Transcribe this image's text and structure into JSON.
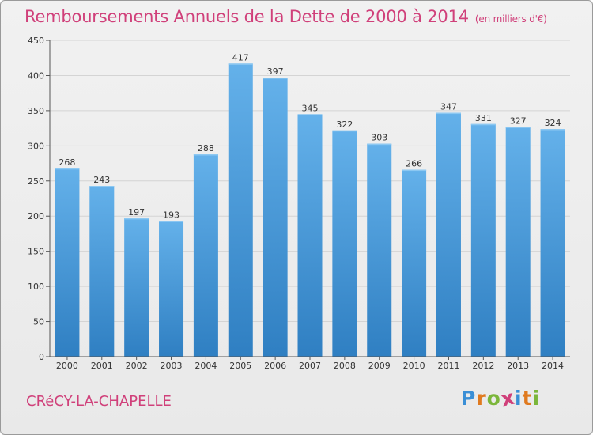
{
  "chart_data": {
    "type": "bar",
    "title": "Remboursements Annuels de la Dette de 2000 à 2014",
    "unit_note": "(en milliers d'€)",
    "categories": [
      "2000",
      "2001",
      "2002",
      "2003",
      "2004",
      "2005",
      "2006",
      "2007",
      "2008",
      "2009",
      "2010",
      "2011",
      "2012",
      "2013",
      "2014"
    ],
    "values": [
      268,
      243,
      197,
      193,
      288,
      417,
      397,
      345,
      322,
      303,
      266,
      347,
      331,
      327,
      324
    ],
    "ylim": [
      0,
      450
    ],
    "yticks": [
      0,
      50,
      100,
      150,
      200,
      250,
      300,
      350,
      400,
      450
    ],
    "xlabel": "",
    "ylabel": "",
    "grid": true,
    "bar_color": "#4e9fde",
    "bar_color_light": "#64b1ea",
    "bar_color_dark": "#2f7fc2"
  },
  "footer": {
    "commune": "CRéCY-LA-CHAPELLE"
  },
  "brand": {
    "letters": [
      "P",
      "r",
      "o",
      "x",
      "i",
      "t",
      "i"
    ],
    "colors": [
      "#3a8fd6",
      "#e07a1f",
      "#7bb63a",
      "#d0407a",
      "#3a8fd6",
      "#e07a1f",
      "#7bb63a"
    ]
  },
  "colors": {
    "accent": "#d0407a",
    "grid": "#d4d4d4",
    "axis": "#555555"
  }
}
